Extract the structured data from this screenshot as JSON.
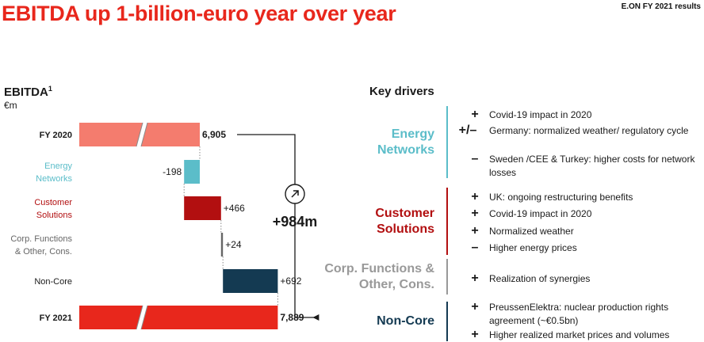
{
  "header": {
    "title": "EBITDA up 1-billion-euro year over year",
    "corner_label": "E.ON FY 2021 results"
  },
  "chart_header": {
    "title": "EBITDA",
    "footnote_mark": "1",
    "unit": "€m"
  },
  "chart_data": {
    "type": "waterfall",
    "categories": [
      "FY 2020",
      "Energy Networks",
      "Customer Solutions",
      "Corp. Functions & Other, Cons.",
      "Non-Core",
      "FY 2021"
    ],
    "category_lines": [
      [
        "FY 2020"
      ],
      [
        "Energy",
        "Networks"
      ],
      [
        "Customer",
        "Solutions"
      ],
      [
        "Corp. Functions",
        "& Other, Cons."
      ],
      [
        "Non-Core"
      ],
      [
        "FY 2021"
      ]
    ],
    "values": [
      6905,
      -198,
      466,
      24,
      692,
      7889
    ],
    "value_labels": [
      "6,905",
      "-198",
      "+466",
      "+24",
      "+692",
      "7,889"
    ],
    "kinds": [
      "total",
      "delta",
      "delta",
      "delta",
      "delta",
      "total"
    ],
    "colors": [
      "#f47c6e",
      "#5bbdc9",
      "#b20f10",
      "#666666",
      "#143a52",
      "#e8271c"
    ],
    "label_colors": [
      "#1a1a1a",
      "#5bbdc9",
      "#b20f10",
      "#666666",
      "#1a1a1a",
      "#1a1a1a"
    ],
    "axis_break": true,
    "change_label": "+984m",
    "change_icon": "arrow-up-right-icon"
  },
  "key_drivers": {
    "title": "Key drivers",
    "segments": [
      {
        "name": "Energy Networks",
        "lines": [
          "Energy",
          "Networks"
        ],
        "color": "#5bbdc9",
        "drivers": [
          {
            "sign": "+",
            "text": "Covid-19 impact in 2020"
          },
          {
            "sign": "+/–",
            "text": "Germany: normalized weather/ regulatory cycle"
          },
          {
            "sign": "–",
            "text": "Sweden /CEE & Turkey: higher costs for network losses"
          }
        ]
      },
      {
        "name": "Customer Solutions",
        "lines": [
          "Customer",
          "Solutions"
        ],
        "color": "#b20f10",
        "drivers": [
          {
            "sign": "+",
            "text": "UK: ongoing restructuring benefits"
          },
          {
            "sign": "+",
            "text": "Covid-19 impact in 2020"
          },
          {
            "sign": "+",
            "text": "Normalized weather"
          },
          {
            "sign": "–",
            "text": "Higher energy prices"
          }
        ]
      },
      {
        "name": "Corp. Functions & Other, Cons.",
        "lines": [
          "Corp. Functions &",
          "Other, Cons."
        ],
        "color": "#999999",
        "drivers": [
          {
            "sign": "+",
            "text": "Realization of synergies"
          }
        ]
      },
      {
        "name": "Non-Core",
        "lines": [
          "Non-Core"
        ],
        "color": "#143a52",
        "drivers": [
          {
            "sign": "+",
            "text": "PreussenElektra: nuclear production rights agreement (~€0.5bn)"
          },
          {
            "sign": "+",
            "text": "Higher realized market prices and volumes"
          }
        ]
      }
    ]
  }
}
